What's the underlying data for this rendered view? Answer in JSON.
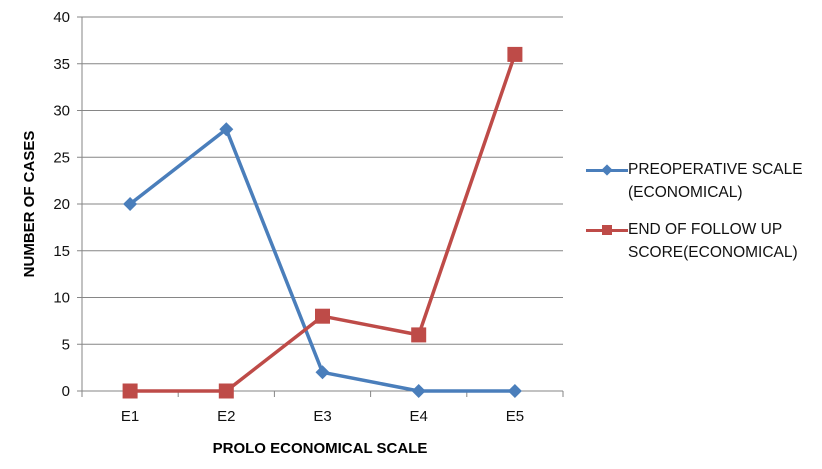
{
  "chart_data": {
    "type": "line",
    "title": "",
    "xlabel": "PROLO ECONOMICAL SCALE",
    "ylabel": "NUMBER OF CASES",
    "categories": [
      "E1",
      "E2",
      "E3",
      "E4",
      "E5"
    ],
    "series": [
      {
        "name": "PREOPERATIVE SCALE (ECONOMICAL)",
        "color": "#4A7EBB",
        "marker": "diamond",
        "values": [
          20,
          28,
          2,
          0,
          0
        ]
      },
      {
        "name": "END OF FOLLOW UP SCORE(ECONOMICAL)",
        "color": "#BE4B48",
        "marker": "square",
        "values": [
          0,
          0,
          8,
          6,
          36
        ]
      }
    ],
    "ylim": [
      0,
      40
    ],
    "yticks": [
      0,
      5,
      10,
      15,
      20,
      25,
      30,
      35,
      40
    ],
    "grid": true,
    "legend_position": "right"
  },
  "legend": {
    "items": [
      {
        "label": "PREOPERATIVE SCALE\n(ECONOMICAL)",
        "color": "#4A7EBB",
        "marker": "diamond"
      },
      {
        "label": "END OF FOLLOW  UP\nSCORE(ECONOMICAL)",
        "color": "#BE4B48",
        "marker": "square"
      }
    ]
  },
  "colors": {
    "grid": "#868686",
    "axis": "#868686"
  }
}
